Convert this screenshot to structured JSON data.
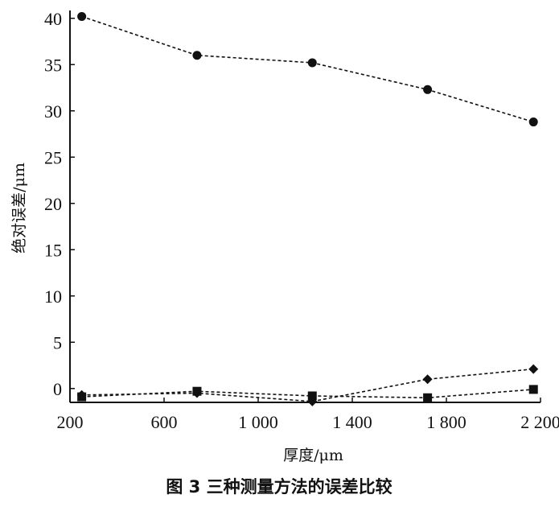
{
  "chart_data": {
    "type": "line",
    "xlabel": "厚度/μm",
    "ylabel": "绝对误差/μm",
    "caption": "图 3   三种测量方法的误差比较",
    "xlim": [
      200,
      2200
    ],
    "ylim": [
      -1.5,
      40.5
    ],
    "x_ticks": [
      200,
      600,
      1000,
      1400,
      1800,
      2200
    ],
    "x_tick_labels": [
      "200",
      "600",
      "1 000",
      "1 400",
      "1 800",
      "2 200"
    ],
    "y_ticks": [
      0,
      5,
      10,
      15,
      20,
      25,
      30,
      35,
      40
    ],
    "y_tick_labels": [
      "0",
      "5",
      "10",
      "15",
      "20",
      "25",
      "30",
      "35",
      "40"
    ],
    "series": [
      {
        "marker": "circle",
        "x": [
          250,
          740,
          1230,
          1720,
          2170
        ],
        "y": [
          40.2,
          36.0,
          35.2,
          32.3,
          28.8
        ]
      },
      {
        "marker": "diamond",
        "x": [
          250,
          740,
          1230,
          1720,
          2170
        ],
        "y": [
          -0.7,
          -0.5,
          -1.4,
          1.0,
          2.1
        ]
      },
      {
        "marker": "square",
        "x": [
          250,
          740,
          1230,
          1720,
          2170
        ],
        "y": [
          -0.9,
          -0.3,
          -0.8,
          -1.0,
          -0.1
        ]
      }
    ]
  }
}
